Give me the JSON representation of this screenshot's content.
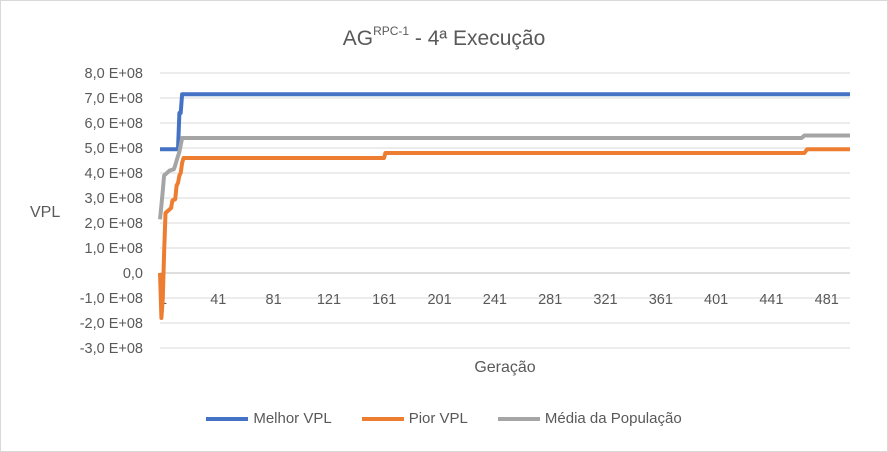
{
  "chart_data": {
    "type": "line",
    "title_main": "AG",
    "title_sup": "RPC-1",
    "title_rest": " - 4ª Execução",
    "xlabel": "Geração",
    "ylabel": "VPL",
    "xlim": [
      1,
      500
    ],
    "ylim": [
      -300000000.0,
      800000000.0
    ],
    "y_ticks": [
      800000000.0,
      700000000.0,
      600000000.0,
      500000000.0,
      400000000.0,
      300000000.0,
      200000000.0,
      100000000.0,
      0,
      -100000000.0,
      -200000000.0,
      -300000000.0
    ],
    "y_tick_labels": [
      "8,0 E+08",
      "7,0 E+08",
      "6,0 E+08",
      "5,0 E+08",
      "4,0 E+08",
      "3,0 E+08",
      "2,0 E+08",
      "1,0 E+08",
      "0,0",
      "-1,0 E+08",
      "-2,0 E+08",
      "-3,0 E+08"
    ],
    "x_ticks": [
      1,
      41,
      81,
      121,
      161,
      201,
      241,
      281,
      321,
      361,
      401,
      441,
      481
    ],
    "x_tick_labels": [
      "1",
      "41",
      "81",
      "121",
      "161",
      "201",
      "241",
      "281",
      "321",
      "361",
      "401",
      "441",
      "481"
    ],
    "grid": true,
    "legend_position": "bottom",
    "series": [
      {
        "name": "Melhor VPL",
        "color": "#4472c4",
        "points": [
          [
            1,
            495000000.0
          ],
          [
            14,
            495000000.0
          ],
          [
            15,
            640000000.0
          ],
          [
            16,
            640000000.0
          ],
          [
            17,
            715000000.0
          ],
          [
            500,
            715000000.0
          ]
        ]
      },
      {
        "name": "Pior VPL",
        "color": "#ed7d31",
        "points": [
          [
            1,
            0.0
          ],
          [
            2,
            -180000000.0
          ],
          [
            3,
            -100000000.0
          ],
          [
            4,
            80000000.0
          ],
          [
            5,
            240000000.0
          ],
          [
            7,
            250000000.0
          ],
          [
            9,
            260000000.0
          ],
          [
            10,
            290000000.0
          ],
          [
            12,
            295000000.0
          ],
          [
            13,
            350000000.0
          ],
          [
            14,
            360000000.0
          ],
          [
            15,
            390000000.0
          ],
          [
            16,
            400000000.0
          ],
          [
            17,
            440000000.0
          ],
          [
            18,
            460000000.0
          ],
          [
            163,
            460000000.0
          ],
          [
            164,
            480000000.0
          ],
          [
            467,
            480000000.0
          ],
          [
            469,
            495000000.0
          ],
          [
            500,
            495000000.0
          ]
        ]
      },
      {
        "name": "Média da População",
        "color": "#a5a5a5",
        "points": [
          [
            1,
            215000000.0
          ],
          [
            2,
            270000000.0
          ],
          [
            3,
            330000000.0
          ],
          [
            4,
            390000000.0
          ],
          [
            6,
            400000000.0
          ],
          [
            8,
            410000000.0
          ],
          [
            11,
            415000000.0
          ],
          [
            12,
            430000000.0
          ],
          [
            13,
            450000000.0
          ],
          [
            15,
            485000000.0
          ],
          [
            17,
            540000000.0
          ],
          [
            465,
            540000000.0
          ],
          [
            467,
            550000000.0
          ],
          [
            500,
            550000000.0
          ]
        ]
      }
    ]
  }
}
